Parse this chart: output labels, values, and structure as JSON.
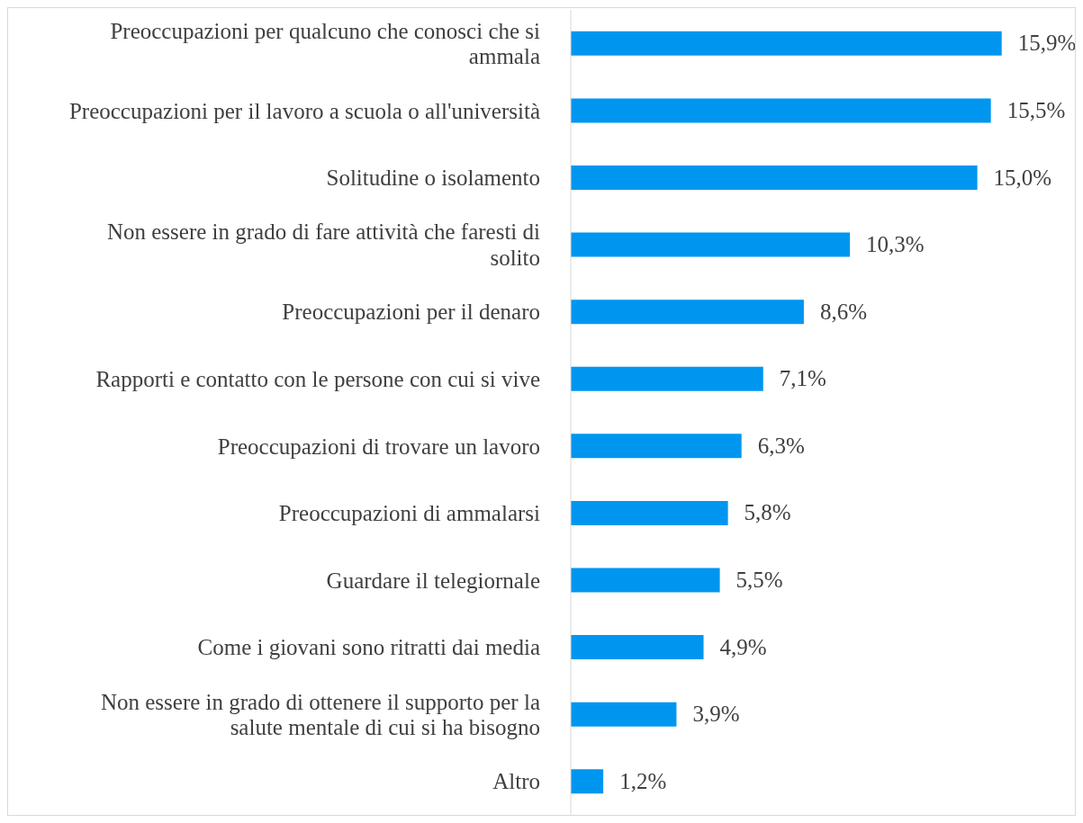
{
  "chart_data": {
    "type": "bar",
    "orientation": "horizontal",
    "categories": [
      "Preoccupazioni per qualcuno che conosci che si ammala",
      "Preoccupazioni per il lavoro a scuola o all'università",
      "Solitudine o isolamento",
      "Non essere in grado di fare attività che faresti di solito",
      "Preoccupazioni per il denaro",
      "Rapporti e contatto con le persone con cui si vive",
      "Preoccupazioni di trovare un lavoro",
      "Preoccupazioni di ammalarsi",
      "Guardare il telegiornale",
      "Come i giovani sono ritratti dai media",
      "Non essere in grado di ottenere il supporto per la salute mentale di cui si ha bisogno",
      "Altro"
    ],
    "values": [
      15.9,
      15.5,
      15.0,
      10.3,
      8.6,
      7.1,
      6.3,
      5.8,
      5.5,
      4.9,
      3.9,
      1.2
    ],
    "value_labels": [
      "15,9%",
      "15,5%",
      "15,0%",
      "10,3%",
      "8,6%",
      "7,1%",
      "6,3%",
      "5,8%",
      "5,5%",
      "4,9%",
      "3,9%",
      "1,2%"
    ],
    "color": "#0096f0"
  }
}
